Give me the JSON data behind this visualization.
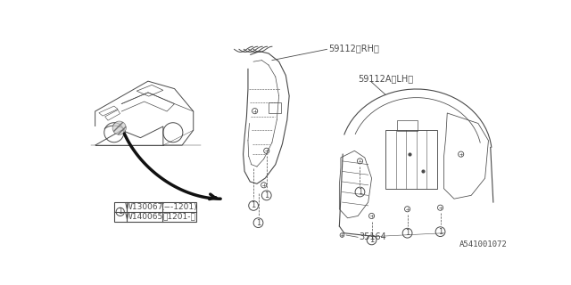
{
  "bg_color": "#ffffff",
  "line_color": "#4a4a4a",
  "text_color": "#4a4a4a",
  "fig_width": 6.4,
  "fig_height": 3.2,
  "dpi": 100,
  "labels": {
    "rh": "59112〈RH〉",
    "lh": "59112A〈LH〉",
    "bolt": "35164",
    "footnote": "A541001072"
  },
  "table": {
    "part_num1": "W130067",
    "date1": "(−-1201)",
    "part_num2": "W140065",
    "date2": "〨1201-〉"
  }
}
